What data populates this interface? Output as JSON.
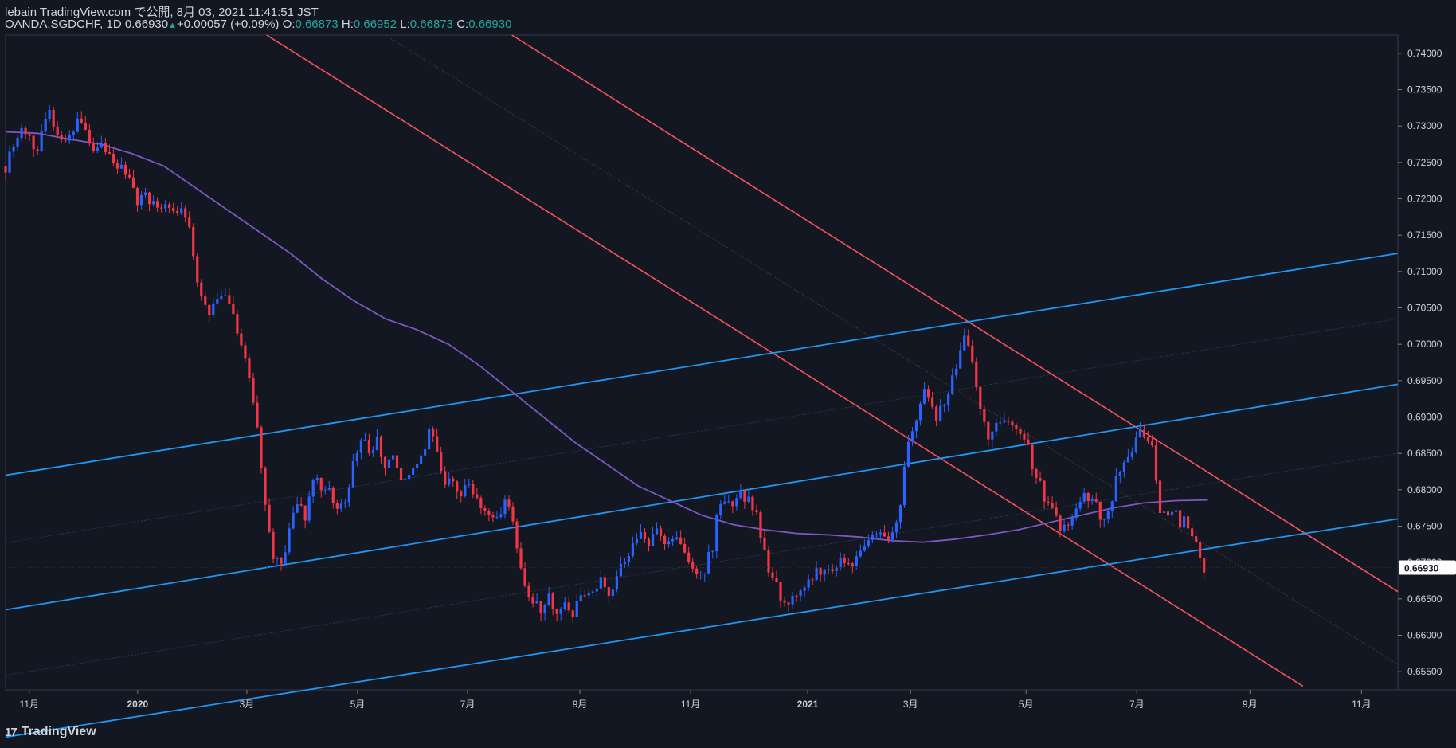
{
  "header": {
    "publish_line": "lebain TradingView.com で公開, 8月 03, 2021 11:41:51 JST",
    "symbol": "OANDA:SGDCHF, 1D",
    "last": "0.66930",
    "change": "+0.00057 (+0.09%)",
    "o_label": "O:",
    "o_val": "0.66873",
    "h_label": "H:",
    "h_val": "0.66952",
    "l_label": "L:",
    "l_val": "0.66873",
    "c_label": "C:",
    "c_val": "0.66930"
  },
  "footer": {
    "brand": "TradingView",
    "brand_mark": "17"
  },
  "colors": {
    "background": "#131722",
    "up_candle": "#2962ff",
    "down_candle": "#f23645",
    "trend_red": "#f7525f",
    "channel_blue": "#2196f3",
    "ma_purple": "#7e57c2",
    "price_badge": "#ffffff"
  },
  "chart_data": {
    "type": "line",
    "title": "",
    "xlabel": "",
    "ylabel": "",
    "ylim": [
      0.6525,
      0.7425
    ],
    "y_ticks": [
      "0.74000",
      "0.73500",
      "0.73000",
      "0.72500",
      "0.72000",
      "0.71500",
      "0.71000",
      "0.70500",
      "0.70000",
      "0.69500",
      "0.69000",
      "0.68500",
      "0.68000",
      "0.67500",
      "0.67000",
      "0.66500",
      "0.66000",
      "0.65500"
    ],
    "y_tick_values": [
      0.74,
      0.735,
      0.73,
      0.725,
      0.72,
      0.715,
      0.71,
      0.705,
      0.7,
      0.695,
      0.69,
      0.685,
      0.68,
      0.675,
      0.67,
      0.665,
      0.66,
      0.655
    ],
    "x_ticks": [
      {
        "label": "11月",
        "bold": false
      },
      {
        "label": "2020",
        "bold": true
      },
      {
        "label": "3月",
        "bold": false
      },
      {
        "label": "5月",
        "bold": false
      },
      {
        "label": "7月",
        "bold": false
      },
      {
        "label": "9月",
        "bold": false
      },
      {
        "label": "11月",
        "bold": false
      },
      {
        "label": "2021",
        "bold": true
      },
      {
        "label": "3月",
        "bold": false
      },
      {
        "label": "5月",
        "bold": false
      },
      {
        "label": "7月",
        "bold": false
      },
      {
        "label": "9月",
        "bold": false
      },
      {
        "label": "11月",
        "bold": false
      }
    ],
    "x_tick_index": [
      30,
      167,
      305,
      445,
      584,
      726,
      866,
      1014,
      1144,
      1290,
      1430,
      1573,
      1714
    ],
    "current_price": "0.66930",
    "series": [
      {
        "style": "close_path",
        "values": [
          [
            0,
            0.7245
          ],
          [
            10,
            0.7275
          ],
          [
            20,
            0.7295
          ],
          [
            30,
            0.729
          ],
          [
            40,
            0.7265
          ],
          [
            48,
            0.7295
          ],
          [
            55,
            0.7322
          ],
          [
            65,
            0.7285
          ],
          [
            75,
            0.7275
          ],
          [
            90,
            0.7305
          ],
          [
            100,
            0.729
          ],
          [
            110,
            0.726
          ],
          [
            120,
            0.727
          ],
          [
            130,
            0.7255
          ],
          [
            140,
            0.7245
          ],
          [
            155,
            0.723
          ],
          [
            165,
            0.7195
          ],
          [
            175,
            0.721
          ],
          [
            185,
            0.7195
          ],
          [
            195,
            0.7185
          ],
          [
            205,
            0.7195
          ],
          [
            215,
            0.7175
          ],
          [
            225,
            0.7185
          ],
          [
            235,
            0.7145
          ],
          [
            240,
            0.7095
          ],
          [
            248,
            0.7065
          ],
          [
            255,
            0.7045
          ],
          [
            265,
            0.7055
          ],
          [
            275,
            0.7065
          ],
          [
            285,
            0.7045
          ],
          [
            295,
            0.7005
          ],
          [
            305,
            0.6975
          ],
          [
            312,
            0.6925
          ],
          [
            318,
            0.688
          ],
          [
            325,
            0.682
          ],
          [
            332,
            0.6745
          ],
          [
            338,
            0.6705
          ],
          [
            345,
            0.6715
          ],
          [
            352,
            0.6695
          ],
          [
            360,
            0.6755
          ],
          [
            370,
            0.6775
          ],
          [
            380,
            0.6765
          ],
          [
            390,
            0.6825
          ],
          [
            400,
            0.6805
          ],
          [
            410,
            0.6795
          ],
          [
            420,
            0.6775
          ],
          [
            430,
            0.6785
          ],
          [
            440,
            0.6835
          ],
          [
            450,
            0.6875
          ],
          [
            460,
            0.6845
          ],
          [
            470,
            0.6865
          ],
          [
            480,
            0.6835
          ],
          [
            490,
            0.6845
          ],
          [
            500,
            0.6815
          ],
          [
            510,
            0.6825
          ],
          [
            520,
            0.6835
          ],
          [
            530,
            0.6845
          ],
          [
            538,
            0.6895
          ],
          [
            545,
            0.6845
          ],
          [
            555,
            0.6805
          ],
          [
            565,
            0.6815
          ],
          [
            575,
            0.6795
          ],
          [
            585,
            0.6805
          ],
          [
            595,
            0.6785
          ],
          [
            605,
            0.6775
          ],
          [
            615,
            0.6765
          ],
          [
            625,
            0.6755
          ],
          [
            632,
            0.679
          ],
          [
            640,
            0.6765
          ],
          [
            648,
            0.671
          ],
          [
            655,
            0.6665
          ],
          [
            665,
            0.6645
          ],
          [
            675,
            0.6635
          ],
          [
            685,
            0.6655
          ],
          [
            695,
            0.6635
          ],
          [
            705,
            0.6645
          ],
          [
            715,
            0.6625
          ],
          [
            725,
            0.6645
          ],
          [
            735,
            0.6655
          ],
          [
            745,
            0.6665
          ],
          [
            755,
            0.6675
          ],
          [
            765,
            0.6655
          ],
          [
            775,
            0.6685
          ],
          [
            785,
            0.6705
          ],
          [
            795,
            0.6725
          ],
          [
            805,
            0.6735
          ],
          [
            815,
            0.6725
          ],
          [
            825,
            0.6745
          ],
          [
            835,
            0.6725
          ],
          [
            845,
            0.6735
          ],
          [
            855,
            0.6715
          ],
          [
            865,
            0.6695
          ],
          [
            875,
            0.6685
          ],
          [
            885,
            0.6695
          ],
          [
            895,
            0.6725
          ],
          [
            900,
            0.6785
          ],
          [
            910,
            0.6775
          ],
          [
            920,
            0.6785
          ],
          [
            930,
            0.6795
          ],
          [
            940,
            0.6785
          ],
          [
            950,
            0.6765
          ],
          [
            958,
            0.6715
          ],
          [
            965,
            0.6685
          ],
          [
            975,
            0.6665
          ],
          [
            985,
            0.6645
          ],
          [
            995,
            0.6655
          ],
          [
            1005,
            0.6665
          ],
          [
            1015,
            0.6675
          ],
          [
            1025,
            0.6685
          ],
          [
            1035,
            0.6695
          ],
          [
            1045,
            0.6685
          ],
          [
            1055,
            0.6705
          ],
          [
            1065,
            0.6695
          ],
          [
            1075,
            0.6705
          ],
          [
            1085,
            0.6715
          ],
          [
            1095,
            0.6735
          ],
          [
            1105,
            0.6745
          ],
          [
            1112,
            0.6725
          ],
          [
            1120,
            0.6735
          ],
          [
            1130,
            0.6775
          ],
          [
            1138,
            0.6845
          ],
          [
            1145,
            0.6875
          ],
          [
            1152,
            0.6905
          ],
          [
            1160,
            0.6935
          ],
          [
            1168,
            0.6925
          ],
          [
            1175,
            0.6895
          ],
          [
            1185,
            0.6915
          ],
          [
            1195,
            0.6945
          ],
          [
            1205,
            0.6975
          ],
          [
            1212,
            0.7005
          ],
          [
            1220,
            0.6985
          ],
          [
            1228,
            0.6935
          ],
          [
            1235,
            0.6905
          ],
          [
            1242,
            0.6875
          ],
          [
            1250,
            0.6895
          ],
          [
            1260,
            0.6885
          ],
          [
            1270,
            0.6895
          ],
          [
            1280,
            0.6885
          ],
          [
            1290,
            0.6865
          ],
          [
            1298,
            0.6835
          ],
          [
            1305,
            0.6815
          ],
          [
            1315,
            0.6785
          ],
          [
            1325,
            0.6765
          ],
          [
            1335,
            0.6745
          ],
          [
            1345,
            0.6755
          ],
          [
            1355,
            0.6775
          ],
          [
            1365,
            0.6795
          ],
          [
            1375,
            0.6785
          ],
          [
            1385,
            0.6765
          ],
          [
            1395,
            0.6775
          ],
          [
            1405,
            0.6815
          ],
          [
            1412,
            0.6845
          ],
          [
            1420,
            0.6835
          ],
          [
            1428,
            0.6865
          ],
          [
            1435,
            0.6875
          ],
          [
            1442,
            0.6865
          ],
          [
            1450,
            0.6855
          ],
          [
            1458,
            0.6775
          ],
          [
            1465,
            0.6765
          ],
          [
            1475,
            0.6775
          ],
          [
            1485,
            0.6755
          ],
          [
            1492,
            0.6765
          ],
          [
            1500,
            0.6735
          ],
          [
            1508,
            0.6715
          ],
          [
            1515,
            0.6695
          ],
          [
            1520,
            0.6693
          ]
        ]
      },
      {
        "style": "ma",
        "values": [
          [
            0,
            0.7292
          ],
          [
            40,
            0.729
          ],
          [
            80,
            0.7282
          ],
          [
            120,
            0.7275
          ],
          [
            160,
            0.7262
          ],
          [
            200,
            0.7245
          ],
          [
            240,
            0.7215
          ],
          [
            280,
            0.7185
          ],
          [
            320,
            0.7155
          ],
          [
            360,
            0.7125
          ],
          [
            400,
            0.709
          ],
          [
            440,
            0.706
          ],
          [
            480,
            0.7035
          ],
          [
            520,
            0.702
          ],
          [
            560,
            0.7
          ],
          [
            600,
            0.697
          ],
          [
            640,
            0.6935
          ],
          [
            680,
            0.69
          ],
          [
            720,
            0.6865
          ],
          [
            760,
            0.6835
          ],
          [
            800,
            0.6805
          ],
          [
            840,
            0.6785
          ],
          [
            880,
            0.6765
          ],
          [
            920,
            0.6752
          ],
          [
            960,
            0.6745
          ],
          [
            1000,
            0.674
          ],
          [
            1040,
            0.6738
          ],
          [
            1080,
            0.6735
          ],
          [
            1120,
            0.673
          ],
          [
            1160,
            0.6728
          ],
          [
            1200,
            0.6732
          ],
          [
            1240,
            0.6738
          ],
          [
            1280,
            0.6745
          ],
          [
            1320,
            0.6755
          ],
          [
            1360,
            0.6765
          ],
          [
            1400,
            0.6775
          ],
          [
            1440,
            0.6782
          ],
          [
            1480,
            0.6785
          ],
          [
            1520,
            0.6786
          ]
        ]
      }
    ],
    "trendlines": [
      {
        "color": "red",
        "from": [
          330,
          0.7425
        ],
        "to": [
          1640,
          0.653
        ]
      },
      {
        "color": "red",
        "from": [
          640,
          0.7425
        ],
        "to": [
          1760,
          0.666
        ]
      },
      {
        "color": "red_thin",
        "from": [
          480,
          0.7425
        ],
        "to": [
          1760,
          0.656
        ]
      },
      {
        "color": "blue",
        "from": [
          0,
          0.682
        ],
        "to": [
          1760,
          0.7125
        ]
      },
      {
        "color": "blue",
        "from": [
          0,
          0.6635
        ],
        "to": [
          1760,
          0.6945
        ]
      },
      {
        "color": "blue",
        "from": [
          0,
          0.646
        ],
        "to": [
          1760,
          0.676
        ]
      },
      {
        "color": "blue_thin",
        "from": [
          0,
          0.6727
        ],
        "to": [
          1760,
          0.7035
        ]
      },
      {
        "color": "blue_thin",
        "from": [
          0,
          0.6545
        ],
        "to": [
          1760,
          0.685
        ]
      }
    ]
  }
}
